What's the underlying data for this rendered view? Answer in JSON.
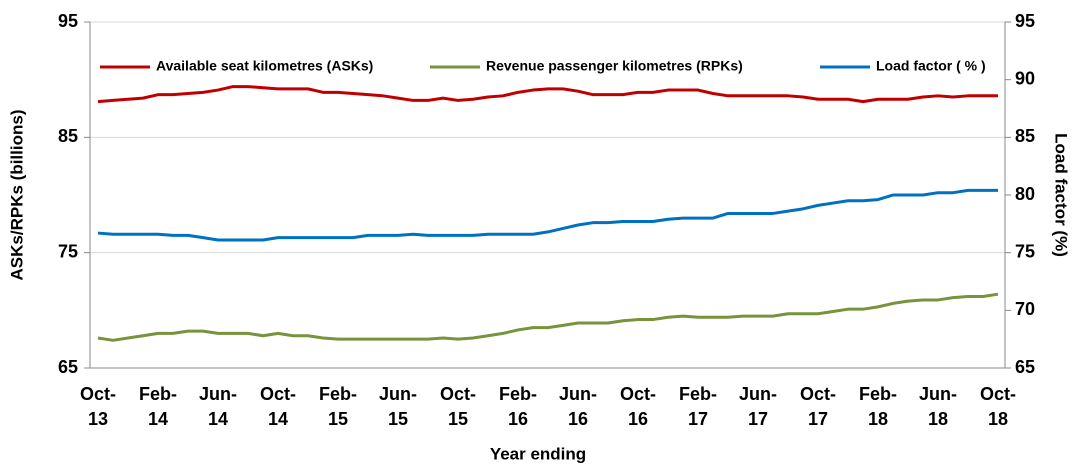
{
  "chart_data": {
    "type": "line",
    "x_label": "Year ending",
    "y_label": "ASKs/RPKs (billions)",
    "y2_label": "Load factor (%)",
    "categories": [
      "Oct-13",
      null,
      null,
      null,
      "Feb-14",
      null,
      null,
      null,
      "Jun-14",
      null,
      null,
      null,
      "Oct-14",
      null,
      null,
      null,
      "Feb-15",
      null,
      null,
      null,
      "Jun-15",
      null,
      null,
      null,
      "Oct-15",
      null,
      null,
      null,
      "Feb-16",
      null,
      null,
      null,
      "Jun-16",
      null,
      null,
      null,
      "Oct-16",
      null,
      null,
      null,
      "Feb-17",
      null,
      null,
      null,
      "Jun-17",
      null,
      null,
      null,
      "Oct-17",
      null,
      null,
      null,
      "Feb-18",
      null,
      null,
      null,
      "Jun-18",
      null,
      null,
      null,
      "Oct-18"
    ],
    "series": [
      {
        "name": "Available seat kilometres (ASKs)",
        "color": "#c00000",
        "axis": "y",
        "values": [
          88.1,
          88.2,
          88.3,
          88.4,
          88.7,
          88.7,
          88.8,
          88.9,
          89.1,
          89.4,
          89.4,
          89.3,
          89.2,
          89.2,
          89.2,
          88.9,
          88.9,
          88.8,
          88.7,
          88.6,
          88.4,
          88.2,
          88.2,
          88.4,
          88.2,
          88.3,
          88.5,
          88.6,
          88.9,
          89.1,
          89.2,
          89.2,
          89.0,
          88.7,
          88.7,
          88.7,
          88.9,
          88.9,
          89.1,
          89.1,
          89.1,
          88.8,
          88.6,
          88.6,
          88.6,
          88.6,
          88.6,
          88.5,
          88.3,
          88.3,
          88.3,
          88.1,
          88.3,
          88.3,
          88.3,
          88.5,
          88.6,
          88.5,
          88.6,
          88.6,
          88.6
        ]
      },
      {
        "name": "Revenue passenger kilometres (RPKs)",
        "color": "#77933c",
        "axis": "y",
        "values": [
          67.6,
          67.4,
          67.6,
          67.8,
          68.0,
          68.0,
          68.2,
          68.2,
          68.0,
          68.0,
          68.0,
          67.8,
          68.0,
          67.8,
          67.8,
          67.6,
          67.5,
          67.5,
          67.5,
          67.5,
          67.5,
          67.5,
          67.5,
          67.6,
          67.5,
          67.6,
          67.8,
          68.0,
          68.3,
          68.5,
          68.5,
          68.7,
          68.9,
          68.9,
          68.9,
          69.1,
          69.2,
          69.2,
          69.4,
          69.5,
          69.4,
          69.4,
          69.4,
          69.5,
          69.5,
          69.5,
          69.7,
          69.7,
          69.7,
          69.9,
          70.1,
          70.1,
          70.3,
          70.6,
          70.8,
          70.9,
          70.9,
          71.1,
          71.2,
          71.2,
          71.4
        ]
      },
      {
        "name": "Load factor ( % )",
        "color": "#0070c0",
        "axis": "y2",
        "values": [
          76.7,
          76.6,
          76.6,
          76.6,
          76.6,
          76.5,
          76.5,
          76.3,
          76.1,
          76.1,
          76.1,
          76.1,
          76.3,
          76.3,
          76.3,
          76.3,
          76.3,
          76.3,
          76.5,
          76.5,
          76.5,
          76.6,
          76.5,
          76.5,
          76.5,
          76.5,
          76.6,
          76.6,
          76.6,
          76.6,
          76.8,
          77.1,
          77.4,
          77.6,
          77.6,
          77.7,
          77.7,
          77.7,
          77.9,
          78.0,
          78.0,
          78.0,
          78.4,
          78.4,
          78.4,
          78.4,
          78.6,
          78.8,
          79.1,
          79.3,
          79.5,
          79.5,
          79.6,
          80.0,
          80.0,
          80.0,
          80.2,
          80.2,
          80.4,
          80.4,
          80.4
        ]
      }
    ],
    "ylim": [
      65,
      95
    ],
    "yticks": [
      65,
      75,
      85,
      95
    ],
    "y2lim": [
      65,
      95
    ],
    "y2ticks": [
      65,
      70,
      75,
      80,
      85,
      90,
      95
    ],
    "grid": true,
    "legend": "top"
  }
}
